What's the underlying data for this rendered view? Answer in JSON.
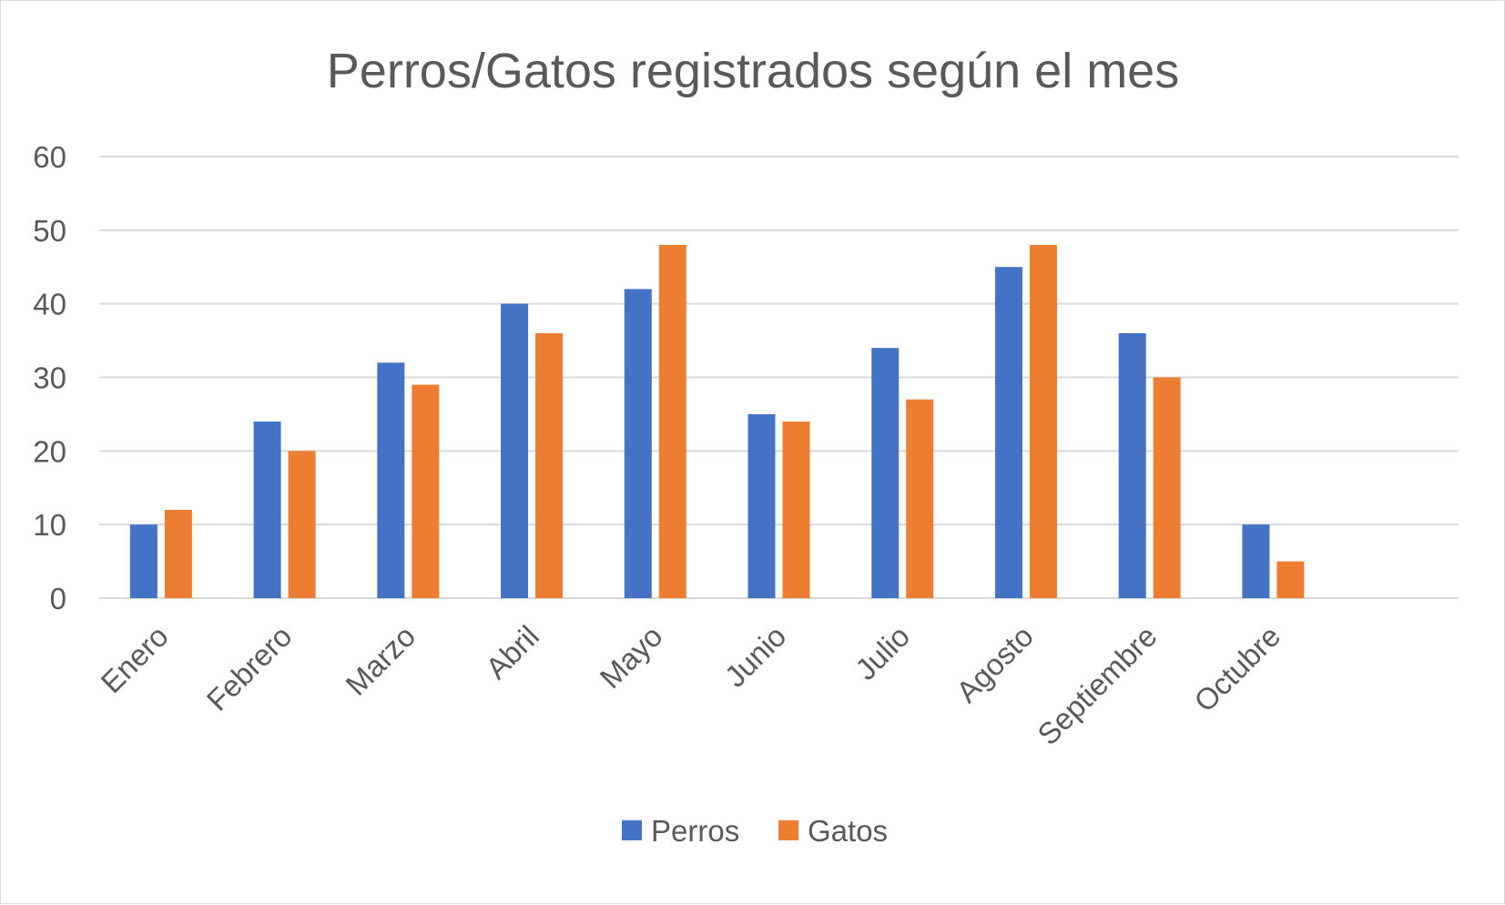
{
  "chart_data": {
    "type": "bar",
    "title": "Perros/Gatos registrados según el mes",
    "categories": [
      "Enero",
      "Febrero",
      "Marzo",
      "Abril",
      "Mayo",
      "Junio",
      "Julio",
      "Agosto",
      "Septiembre",
      "Octubre",
      ""
    ],
    "series": [
      {
        "name": "Perros",
        "color": "#4472c4",
        "values": [
          10,
          24,
          32,
          40,
          42,
          25,
          34,
          45,
          36,
          10,
          null
        ]
      },
      {
        "name": "Gatos",
        "color": "#ed7d31",
        "values": [
          12,
          20,
          29,
          36,
          48,
          24,
          27,
          48,
          30,
          5,
          null
        ]
      }
    ],
    "ylim": [
      0,
      60
    ],
    "yticks": [
      "0",
      "10",
      "20",
      "30",
      "40",
      "50",
      "60"
    ],
    "xlabel": "",
    "ylabel": "",
    "grid": true,
    "legend": "bottom",
    "gridline_color": "#d9d9d9",
    "text_color": "#595959"
  }
}
